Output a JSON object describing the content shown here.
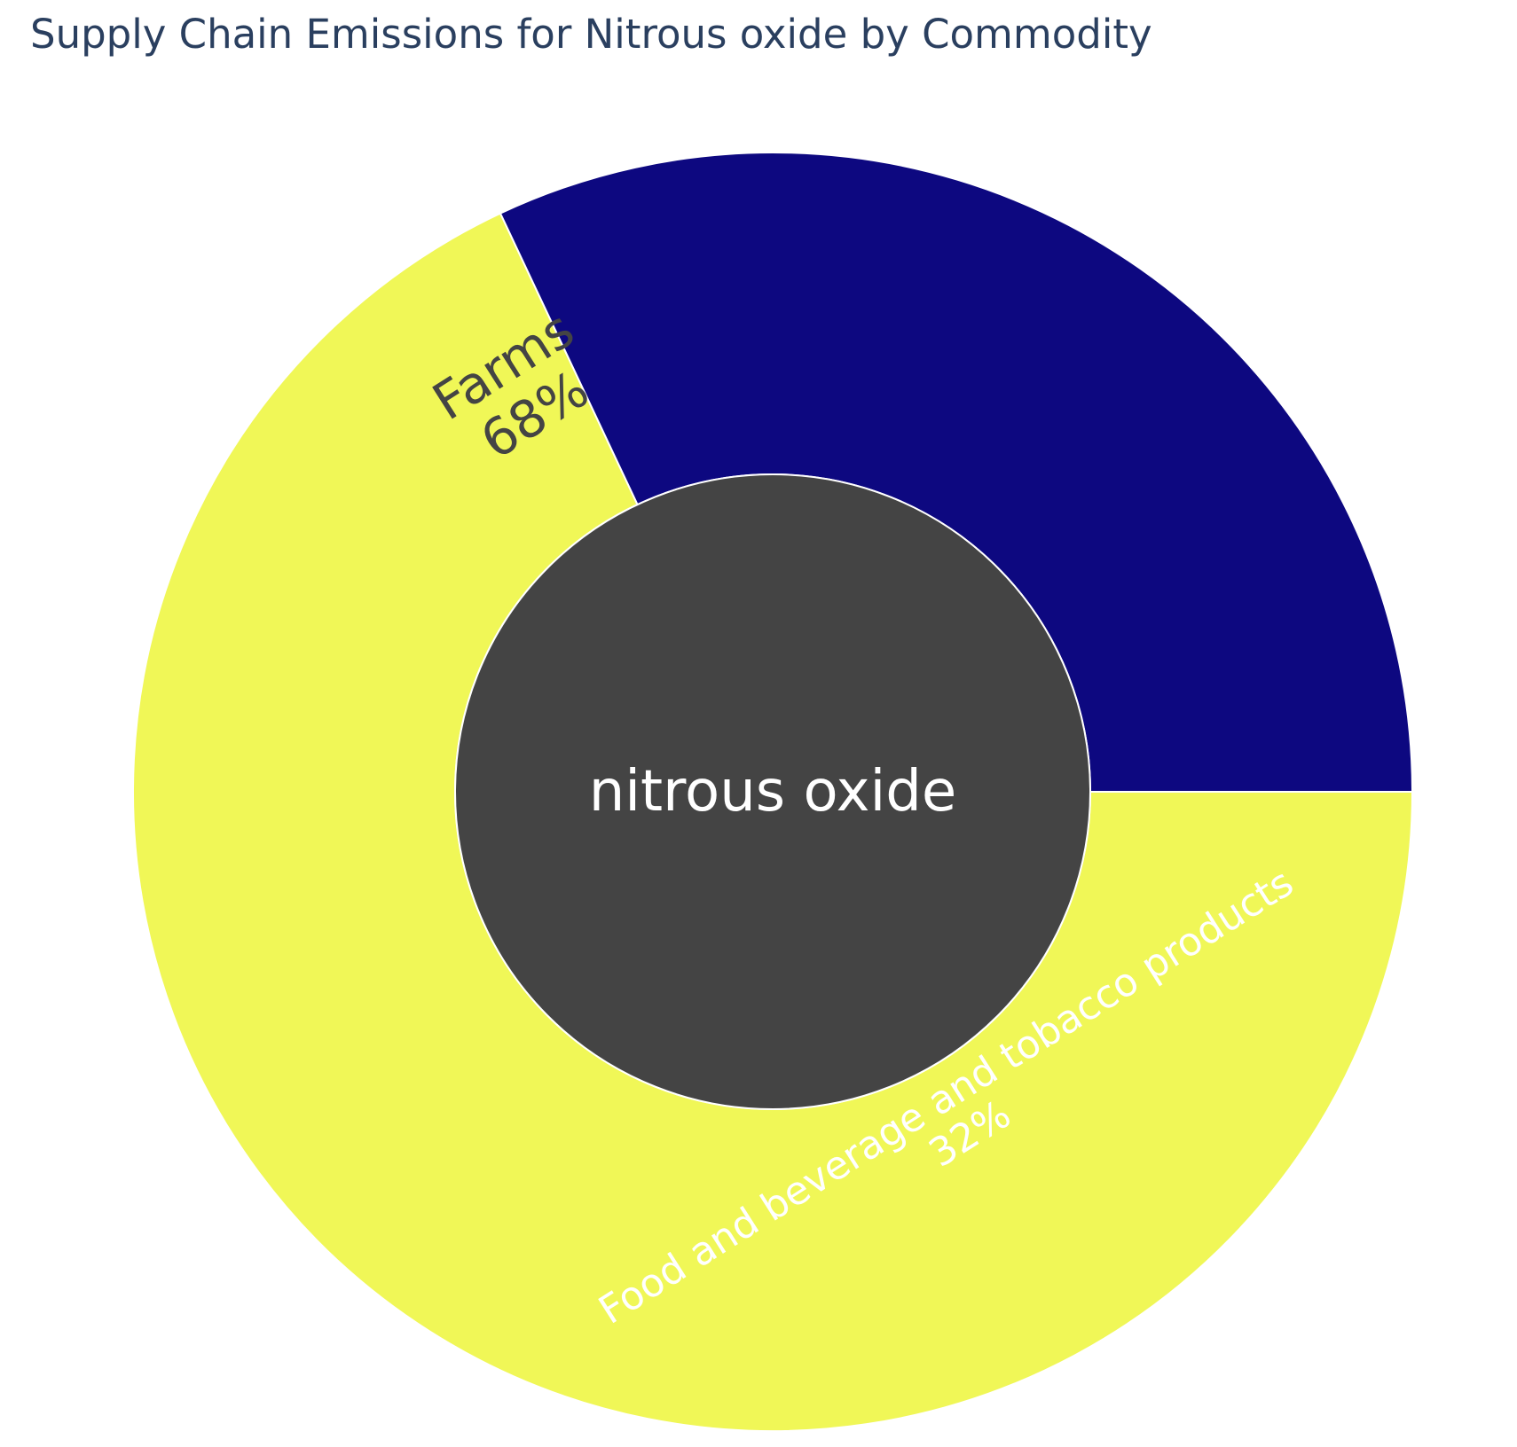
{
  "chart_data": {
    "type": "sunburst",
    "title": "Supply Chain Emissions for Nitrous oxide by Commodity",
    "root": {
      "label": "nitrous oxide",
      "color": "#444444",
      "text_color": "#ffffff"
    },
    "segments": [
      {
        "label": "Farms",
        "percent_text": "68%",
        "value": 68,
        "color": "#f0f757",
        "text_color": "#444444"
      },
      {
        "label": "Food and beverage and tobacco products",
        "percent_text": "32%",
        "value": 32,
        "color": "#0d0880",
        "text_color": "#ffffff"
      }
    ]
  }
}
